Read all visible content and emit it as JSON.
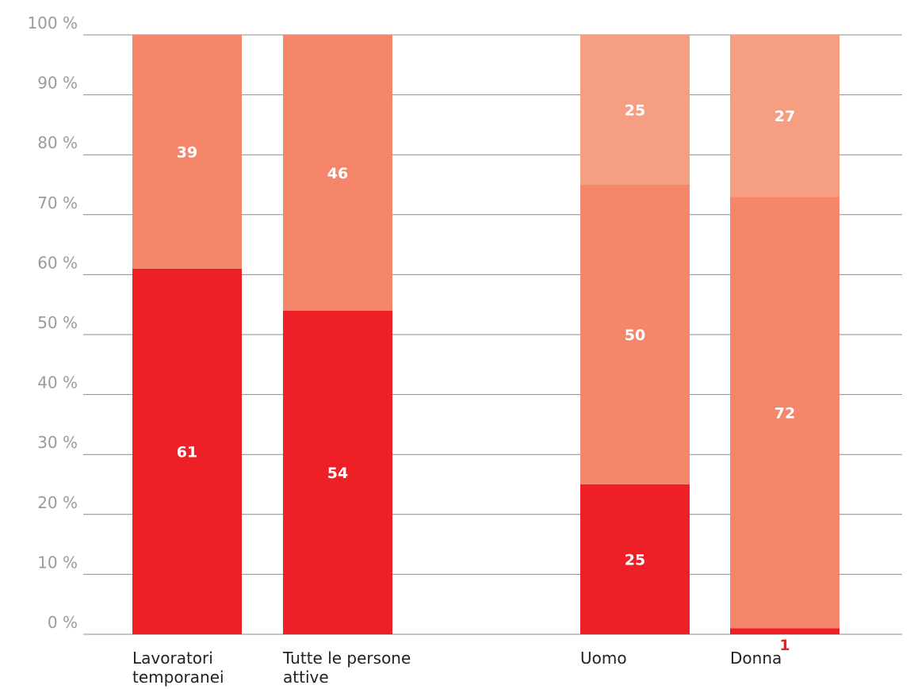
{
  "chart_data": {
    "type": "bar",
    "stacked": true,
    "categories": [
      [
        "Lavoratori",
        "temporanei"
      ],
      [
        "Tutte le persone",
        "attive"
      ],
      [
        "Uomo"
      ],
      [
        "Donna"
      ]
    ],
    "series": [
      {
        "values": [
          61,
          54,
          25,
          1
        ],
        "color": "#ee1f27"
      },
      {
        "values": [
          39,
          46,
          50,
          72
        ],
        "color": "#f5866a"
      },
      {
        "values": [
          0,
          0,
          25,
          27
        ],
        "color": "#f69e82"
      }
    ],
    "y_ticks": [
      "0 %",
      "10 %",
      "20 %",
      "30 %",
      "40 %",
      "50 %",
      "60 %",
      "70 %",
      "80 %",
      "90 %",
      "100 %"
    ],
    "ylim": [
      0,
      100
    ],
    "grid": true,
    "colors": {
      "label_on_bar": "#ffffff",
      "label_below_bar": "#ee1f27"
    }
  }
}
